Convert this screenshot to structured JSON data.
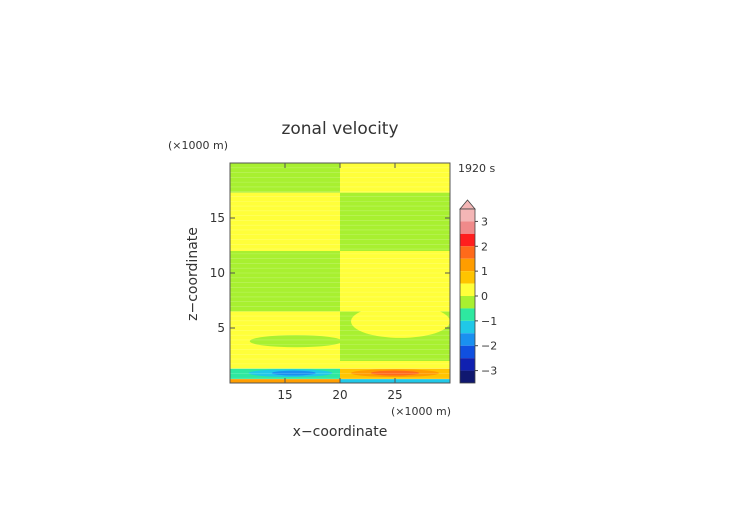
{
  "chart_data": {
    "type": "heatmap",
    "title": "zonal velocity",
    "time_label": "1920 s",
    "xlabel": "x−coordinate",
    "ylabel": "z−coordinate",
    "x_scale_label": "(×1000 m)",
    "y_scale_label": "(×1000 m)",
    "xlim": [
      10,
      30
    ],
    "ylim": [
      0,
      20
    ],
    "x_ticks": [
      15,
      20,
      25
    ],
    "y_ticks": [
      5,
      10,
      15
    ],
    "colorbar": {
      "ticks": [
        "3",
        "2",
        "1",
        "0",
        "−1",
        "−2",
        "−3"
      ],
      "tick_values": [
        3,
        2,
        1,
        0,
        -1,
        -2,
        -3
      ],
      "levels": [
        {
          "lo": 3.0,
          "hi": 3.5,
          "color": "#f4b6b6"
        },
        {
          "lo": 2.5,
          "hi": 3.0,
          "color": "#f08a8a"
        },
        {
          "lo": 2.0,
          "hi": 2.5,
          "color": "#ff1e1e"
        },
        {
          "lo": 1.5,
          "hi": 2.0,
          "color": "#ff6a1a"
        },
        {
          "lo": 1.0,
          "hi": 1.5,
          "color": "#ff9d00"
        },
        {
          "lo": 0.5,
          "hi": 1.0,
          "color": "#ffc400"
        },
        {
          "lo": 0.0,
          "hi": 0.5,
          "color": "#ffff3a"
        },
        {
          "lo": -0.5,
          "hi": 0.0,
          "color": "#a8f030"
        },
        {
          "lo": -1.0,
          "hi": -0.5,
          "color": "#2ee8a0"
        },
        {
          "lo": -1.5,
          "hi": -1.0,
          "color": "#20c8e8"
        },
        {
          "lo": -2.0,
          "hi": -1.5,
          "color": "#1a90f0"
        },
        {
          "lo": -2.5,
          "hi": -2.0,
          "color": "#1050e0"
        },
        {
          "lo": -3.0,
          "hi": -2.5,
          "color": "#1020b0"
        },
        {
          "lo": -3.5,
          "hi": -3.0,
          "color": "#101870"
        }
      ],
      "extend_top": true
    },
    "regions": [
      {
        "x0": 10,
        "x1": 20,
        "z0": 17.3,
        "z1": 20,
        "value": -0.2
      },
      {
        "x0": 20,
        "x1": 30,
        "z0": 17.3,
        "z1": 20,
        "value": 0.2
      },
      {
        "x0": 10,
        "x1": 20,
        "z0": 12.0,
        "z1": 17.3,
        "value": 0.2
      },
      {
        "x0": 20,
        "x1": 30,
        "z0": 12.0,
        "z1": 17.3,
        "value": -0.2
      },
      {
        "x0": 10,
        "x1": 20,
        "z0": 6.5,
        "z1": 12.0,
        "value": -0.2
      },
      {
        "x0": 20,
        "x1": 30,
        "z0": 6.5,
        "z1": 12.0,
        "value": 0.2
      },
      {
        "x0": 10,
        "x1": 20,
        "z0": 2.0,
        "z1": 6.5,
        "value": 0.2
      },
      {
        "x0": 20,
        "x1": 30,
        "z0": 2.0,
        "z1": 6.5,
        "value": -0.2
      },
      {
        "x0": 10,
        "x1": 30,
        "z0": 1.3,
        "z1": 2.0,
        "value": 0.2
      },
      {
        "x0": 10,
        "x1": 20,
        "z0": 0.35,
        "z1": 1.3,
        "value": -0.7
      },
      {
        "x0": 20,
        "x1": 30,
        "z0": 0.35,
        "z1": 1.3,
        "value": 0.7
      },
      {
        "x0": 10,
        "x1": 20,
        "z0": 0.0,
        "z1": 0.35,
        "value": 1.2
      },
      {
        "x0": 20,
        "x1": 30,
        "z0": 0.0,
        "z1": 0.35,
        "value": -1.2
      }
    ],
    "features": [
      {
        "shape": "ellipse",
        "cx": 16.0,
        "cz": 3.8,
        "rx": 4.2,
        "rz": 0.55,
        "value": -0.2
      },
      {
        "shape": "ellipse",
        "cx": 25.5,
        "cz": 5.6,
        "rx": 4.5,
        "rz": 1.5,
        "value": 0.2
      },
      {
        "shape": "ellipse",
        "cx": 26.0,
        "cz": 2.6,
        "rx": 4.0,
        "rz": 0.6,
        "value": -0.2
      },
      {
        "shape": "ellipse",
        "cx": 15.5,
        "cz": 0.9,
        "rx": 3.8,
        "rz": 0.35,
        "value": -1.2
      },
      {
        "shape": "ellipse",
        "cx": 15.8,
        "cz": 0.9,
        "rx": 2.0,
        "rz": 0.22,
        "value": -1.7
      },
      {
        "shape": "ellipse",
        "cx": 25.0,
        "cz": 0.9,
        "rx": 4.0,
        "rz": 0.35,
        "value": 1.2
      },
      {
        "shape": "ellipse",
        "cx": 25.0,
        "cz": 0.9,
        "rx": 2.2,
        "rz": 0.22,
        "value": 1.7
      }
    ]
  }
}
